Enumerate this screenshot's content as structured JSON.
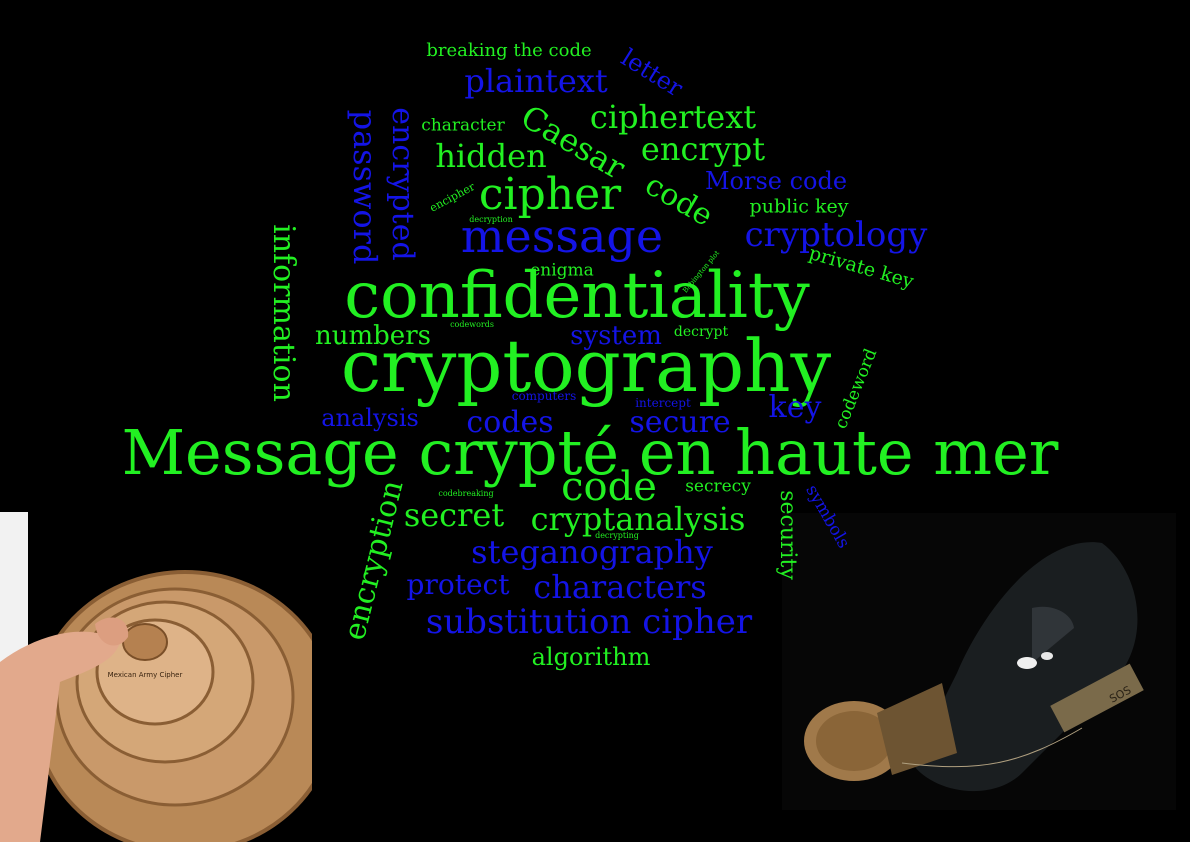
{
  "colors": {
    "background": "#000000",
    "green": "#22f022",
    "blue": "#1414e6"
  },
  "headline": "Message crypté en haute mer",
  "words": {
    "confidentiality": "confidentiality",
    "cryptography": "cryptography",
    "message": "message",
    "cipher": "cipher",
    "code": "code",
    "code2": "code",
    "codes": "codes",
    "secure": "secure",
    "key": "key",
    "cryptology": "cryptology",
    "plaintext": "plaintext",
    "ciphertext": "ciphertext",
    "caesar": "Caesar",
    "encrypt": "encrypt",
    "hidden": "hidden",
    "character": "character",
    "breaking_the_code": "breaking the code",
    "letter": "letter",
    "password": "password",
    "encrypted": "encrypted",
    "information": "information",
    "morse_code": "Morse code",
    "public_key": "public key",
    "private_key": "private key",
    "enigma": "enigma",
    "numbers": "numbers",
    "system": "system",
    "decrypt": "decrypt",
    "analysis": "analysis",
    "codeword": "codeword",
    "secret": "secret",
    "cryptanalysis": "cryptanalysis",
    "secrecy": "secrecy",
    "security": "security",
    "symbols": "symbols",
    "steganography": "steganography",
    "protect": "protect",
    "characters": "characters",
    "substitution_cipher": "substitution cipher",
    "algorithm": "algorithm",
    "encryption": "encryption",
    "encipher": "encipher",
    "decryption": "decryption",
    "computers": "computers",
    "intercept": "intercept",
    "codewords": "codewords",
    "codebreaking": "codebreaking",
    "decrypting": "decrypting",
    "babington_plot": "Babington plot"
  },
  "images": {
    "cipher_wheel": {
      "caption": "Mexican Army Cipher"
    },
    "bottle": {
      "label": "SOS"
    }
  }
}
